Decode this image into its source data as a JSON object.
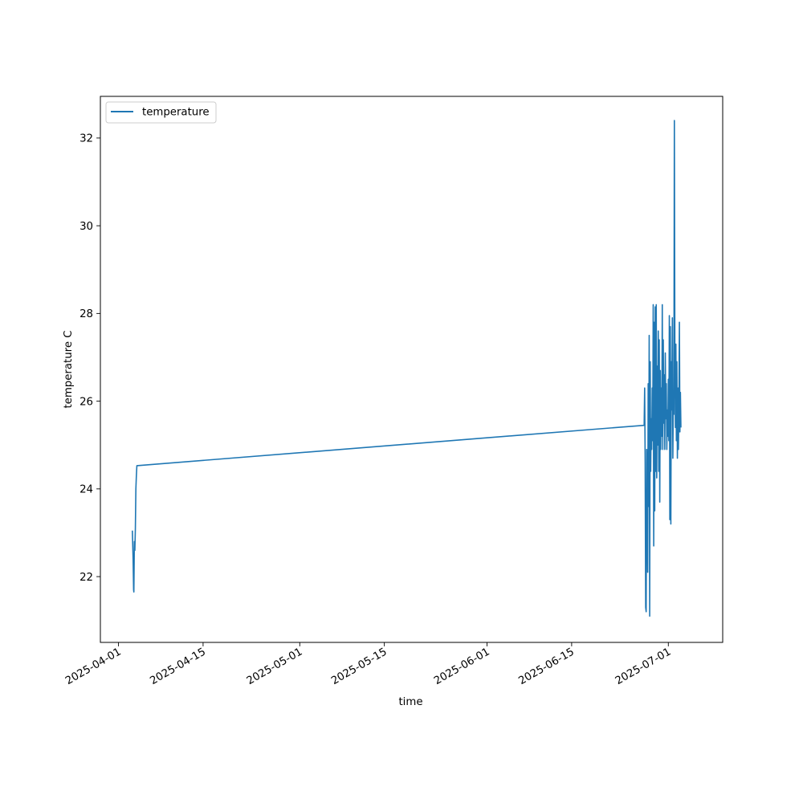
{
  "chart_data": {
    "type": "line",
    "title": "",
    "xlabel": "time",
    "ylabel": "temperature C",
    "xlim": [
      "2025-03-29",
      "2025-07-10"
    ],
    "ylim": [
      20.5,
      32.95
    ],
    "x_ticks": [
      "2025-04-01",
      "2025-04-15",
      "2025-05-01",
      "2025-05-15",
      "2025-06-01",
      "2025-06-15",
      "2025-07-01"
    ],
    "y_ticks": [
      22,
      24,
      26,
      28,
      30,
      32
    ],
    "grid": false,
    "legend_position": "top-left",
    "series": [
      {
        "name": "temperature",
        "color": "#1f77b4",
        "points": [
          [
            "2025-04-03T07:00",
            23.05
          ],
          [
            "2025-04-03T10:00",
            22.4
          ],
          [
            "2025-04-03T12:00",
            21.7
          ],
          [
            "2025-04-03T13:00",
            21.65
          ],
          [
            "2025-04-03T15:00",
            22.8
          ],
          [
            "2025-04-03T17:00",
            22.6
          ],
          [
            "2025-04-03T19:00",
            23.1
          ],
          [
            "2025-04-03T21:00",
            24.0
          ],
          [
            "2025-04-03T23:00",
            24.3
          ],
          [
            "2025-04-04T01:00",
            24.53
          ],
          [
            "2025-06-27T00:00",
            25.45
          ],
          [
            "2025-06-27T02:00",
            26.3
          ],
          [
            "2025-06-27T04:00",
            24.6
          ],
          [
            "2025-06-27T06:00",
            21.3
          ],
          [
            "2025-06-27T08:00",
            21.2
          ],
          [
            "2025-06-27T10:00",
            24.9
          ],
          [
            "2025-06-27T12:00",
            23.7
          ],
          [
            "2025-06-27T14:00",
            22.1
          ],
          [
            "2025-06-27T16:00",
            26.4
          ],
          [
            "2025-06-27T18:00",
            23.6
          ],
          [
            "2025-06-27T20:00",
            27.5
          ],
          [
            "2025-06-27T22:00",
            21.1
          ],
          [
            "2025-06-28T00:00",
            26.9
          ],
          [
            "2025-06-28T02:00",
            24.4
          ],
          [
            "2025-06-28T04:00",
            25.6
          ],
          [
            "2025-06-28T06:00",
            24.9
          ],
          [
            "2025-06-28T08:00",
            26.3
          ],
          [
            "2025-06-28T10:00",
            25.1
          ],
          [
            "2025-06-28T12:00",
            28.2
          ],
          [
            "2025-06-28T14:00",
            22.7
          ],
          [
            "2025-06-28T16:00",
            27.8
          ],
          [
            "2025-06-28T18:00",
            23.5
          ],
          [
            "2025-06-28T20:00",
            28.15
          ],
          [
            "2025-06-28T22:00",
            24.4
          ],
          [
            "2025-06-29T00:00",
            28.2
          ],
          [
            "2025-06-29T02:00",
            24.25
          ],
          [
            "2025-06-29T04:00",
            26.8
          ],
          [
            "2025-06-29T06:00",
            25.0
          ],
          [
            "2025-06-29T08:00",
            27.6
          ],
          [
            "2025-06-29T10:00",
            24.4
          ],
          [
            "2025-06-29T12:00",
            27.4
          ],
          [
            "2025-06-29T14:00",
            23.7
          ],
          [
            "2025-06-29T16:00",
            26.7
          ],
          [
            "2025-06-29T18:00",
            24.9
          ],
          [
            "2025-06-29T20:00",
            26.3
          ],
          [
            "2025-06-29T22:00",
            25.2
          ],
          [
            "2025-06-30T00:00",
            28.2
          ],
          [
            "2025-06-30T02:00",
            24.9
          ],
          [
            "2025-06-30T04:00",
            27.4
          ],
          [
            "2025-06-30T06:00",
            25.5
          ],
          [
            "2025-06-30T08:00",
            26.6
          ],
          [
            "2025-06-30T10:00",
            24.9
          ],
          [
            "2025-06-30T12:00",
            27.1
          ],
          [
            "2025-06-30T14:00",
            25.6
          ],
          [
            "2025-06-30T16:00",
            26.4
          ],
          [
            "2025-06-30T18:00",
            24.9
          ],
          [
            "2025-06-30T20:00",
            25.8
          ],
          [
            "2025-06-30T22:00",
            25.2
          ],
          [
            "2025-07-01T00:00",
            26.5
          ],
          [
            "2025-07-01T02:00",
            25.1
          ],
          [
            "2025-07-01T04:00",
            27.95
          ],
          [
            "2025-07-01T06:00",
            23.3
          ],
          [
            "2025-07-01T08:00",
            27.7
          ],
          [
            "2025-07-01T10:00",
            23.2
          ],
          [
            "2025-07-01T12:00",
            26.9
          ],
          [
            "2025-07-01T14:00",
            25.8
          ],
          [
            "2025-07-01T16:00",
            27.9
          ],
          [
            "2025-07-01T18:00",
            24.7
          ],
          [
            "2025-07-01T20:00",
            26.2
          ],
          [
            "2025-07-01T22:00",
            25.7
          ],
          [
            "2025-07-02T00:00",
            32.4
          ],
          [
            "2025-07-02T02:00",
            27.2
          ],
          [
            "2025-07-02T04:00",
            25.4
          ],
          [
            "2025-07-02T06:00",
            27.3
          ],
          [
            "2025-07-02T08:00",
            25.1
          ],
          [
            "2025-07-02T10:00",
            26.9
          ],
          [
            "2025-07-02T12:00",
            24.7
          ],
          [
            "2025-07-02T14:00",
            26.3
          ],
          [
            "2025-07-02T16:00",
            24.9
          ],
          [
            "2025-07-02T18:00",
            25.8
          ],
          [
            "2025-07-02T20:00",
            27.8
          ],
          [
            "2025-07-02T22:00",
            25.3
          ],
          [
            "2025-07-03T00:00",
            26.2
          ],
          [
            "2025-07-03T02:00",
            25.4
          ]
        ]
      }
    ]
  }
}
